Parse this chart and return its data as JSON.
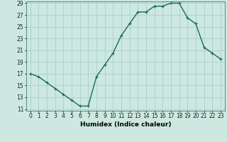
{
  "xlabel": "Humidex (Indice chaleur)",
  "x": [
    0,
    1,
    2,
    3,
    4,
    5,
    6,
    7,
    8,
    9,
    10,
    11,
    12,
    13,
    14,
    15,
    16,
    17,
    18,
    19,
    20,
    21,
    22,
    23
  ],
  "y": [
    17,
    16.5,
    15.5,
    14.5,
    13.5,
    12.5,
    11.5,
    11.5,
    16.5,
    18.5,
    20.5,
    23.5,
    25.5,
    27.5,
    27.5,
    28.5,
    28.5,
    29,
    29,
    26.5,
    25.5,
    21.5,
    20.5,
    19.5
  ],
  "line_color": "#1a6b5a",
  "marker": "+",
  "background_color": "#cce8e0",
  "grid_color": "#aacfca",
  "ylim": [
    11,
    29
  ],
  "xlim": [
    -0.5,
    23.5
  ],
  "yticks": [
    11,
    13,
    15,
    17,
    19,
    21,
    23,
    25,
    27,
    29
  ],
  "xticks": [
    0,
    1,
    2,
    3,
    4,
    5,
    6,
    7,
    8,
    9,
    10,
    11,
    12,
    13,
    14,
    15,
    16,
    17,
    18,
    19,
    20,
    21,
    22,
    23
  ],
  "xtick_labels": [
    "0",
    "1",
    "2",
    "3",
    "4",
    "5",
    "6",
    "7",
    "8",
    "9",
    "10",
    "11",
    "12",
    "13",
    "14",
    "15",
    "16",
    "17",
    "18",
    "19",
    "20",
    "21",
    "22",
    "23"
  ],
  "tick_fontsize": 5.5,
  "xlabel_fontsize": 6.5,
  "line_width": 1.0,
  "marker_size": 3.5
}
